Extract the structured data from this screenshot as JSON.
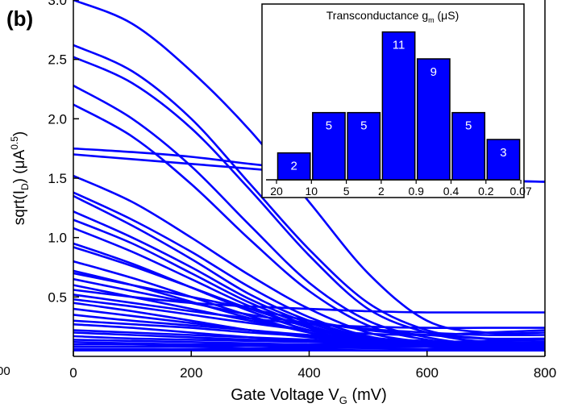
{
  "panel_label": "(b)",
  "clipped_tick_label": "00",
  "colors": {
    "curve": "#0000ff",
    "bar_fill": "#0000ff",
    "bar_stroke": "#000000",
    "bar_label": "#ffffff"
  },
  "chart_data": [
    {
      "type": "line",
      "xlabel": {
        "main": "Gate Voltage V",
        "sub": "G",
        "unit": " (mV)"
      },
      "ylabel": {
        "pre": "sqrt(I",
        "sub": "D",
        "mid": ") (μA",
        "sup": "0.5",
        "post": ")"
      },
      "xlim": [
        0,
        800
      ],
      "ylim": [
        0,
        3.0
      ],
      "xticks": [
        "0",
        "200",
        "400",
        "600",
        "800"
      ],
      "xtick_values": [
        0,
        200,
        400,
        600,
        800
      ],
      "yticks": [
        "0.5",
        "1.0",
        "1.5",
        "2.0",
        "2.5",
        "3.0"
      ],
      "ytick_values": [
        0.5,
        1.0,
        1.5,
        2.0,
        2.5,
        3.0
      ],
      "grid": false,
      "series": [
        {
          "x": [
            0,
            100,
            200,
            300,
            400,
            500,
            600,
            700,
            800
          ],
          "y": [
            3.0,
            2.8,
            2.4,
            1.9,
            1.3,
            0.7,
            0.3,
            0.2,
            0.2
          ]
        },
        {
          "x": [
            0,
            100,
            200,
            300,
            400,
            500,
            600,
            700,
            800
          ],
          "y": [
            2.62,
            2.4,
            2.0,
            1.45,
            0.9,
            0.45,
            0.22,
            0.15,
            0.14
          ]
        },
        {
          "x": [
            0,
            100,
            200,
            300,
            400,
            500,
            600,
            700,
            800
          ],
          "y": [
            2.52,
            2.3,
            1.92,
            1.4,
            0.85,
            0.4,
            0.2,
            0.12,
            0.1
          ]
        },
        {
          "x": [
            0,
            100,
            200,
            300,
            400,
            500,
            600,
            700,
            800
          ],
          "y": [
            2.28,
            2.0,
            1.6,
            1.1,
            0.62,
            0.3,
            0.16,
            0.1,
            0.1
          ]
        },
        {
          "x": [
            0,
            100,
            200,
            300,
            400,
            500,
            600,
            700,
            800
          ],
          "y": [
            2.12,
            1.85,
            1.45,
            0.98,
            0.55,
            0.26,
            0.14,
            0.1,
            0.1
          ]
        },
        {
          "x": [
            0,
            100,
            200,
            300,
            400,
            500,
            600,
            700,
            800
          ],
          "y": [
            1.75,
            1.72,
            1.68,
            1.62,
            1.57,
            1.53,
            1.5,
            1.48,
            1.47
          ]
        },
        {
          "x": [
            0,
            100,
            200,
            300,
            400,
            500,
            600,
            700,
            800
          ],
          "y": [
            1.7,
            1.66,
            1.62,
            1.58,
            1.54,
            1.51,
            1.49,
            1.48,
            1.47
          ]
        },
        {
          "x": [
            0,
            100,
            200,
            300,
            400,
            500,
            600,
            700,
            800
          ],
          "y": [
            1.52,
            1.3,
            1.0,
            0.68,
            0.4,
            0.2,
            0.12,
            0.1,
            0.1
          ]
        },
        {
          "x": [
            0,
            100,
            200,
            300,
            400,
            500,
            600,
            700,
            800
          ],
          "y": [
            1.38,
            1.15,
            0.88,
            0.58,
            0.33,
            0.17,
            0.1,
            0.09,
            0.09
          ]
        },
        {
          "x": [
            0,
            100,
            200,
            300,
            400,
            500,
            600,
            700,
            800
          ],
          "y": [
            1.35,
            1.1,
            0.82,
            0.52,
            0.3,
            0.16,
            0.1,
            0.08,
            0.08
          ]
        },
        {
          "x": [
            0,
            100,
            200,
            300,
            400,
            500,
            600,
            700,
            800
          ],
          "y": [
            1.22,
            1.0,
            0.75,
            0.48,
            0.28,
            0.15,
            0.1,
            0.08,
            0.08
          ]
        },
        {
          "x": [
            0,
            100,
            200,
            300,
            400,
            500,
            600,
            700,
            800
          ],
          "y": [
            1.15,
            0.95,
            0.7,
            0.45,
            0.26,
            0.14,
            0.09,
            0.08,
            0.08
          ]
        },
        {
          "x": [
            0,
            100,
            200,
            300,
            400,
            500,
            600,
            700,
            800
          ],
          "y": [
            1.08,
            0.88,
            0.65,
            0.42,
            0.24,
            0.13,
            0.09,
            0.08,
            0.08
          ]
        },
        {
          "x": [
            0,
            100,
            200,
            300,
            400,
            500,
            600,
            700,
            800
          ],
          "y": [
            0.95,
            0.78,
            0.58,
            0.38,
            0.22,
            0.12,
            0.09,
            0.08,
            0.08
          ]
        },
        {
          "x": [
            0,
            100,
            200,
            300,
            400,
            500,
            600,
            700,
            800
          ],
          "y": [
            0.92,
            0.76,
            0.58,
            0.4,
            0.25,
            0.15,
            0.1,
            0.08,
            0.08
          ]
        },
        {
          "x": [
            0,
            100,
            200,
            300,
            400,
            500,
            600,
            700,
            800
          ],
          "y": [
            0.8,
            0.66,
            0.5,
            0.34,
            0.2,
            0.12,
            0.08,
            0.07,
            0.07
          ]
        },
        {
          "x": [
            0,
            100,
            200,
            300,
            400,
            500,
            600,
            700,
            800
          ],
          "y": [
            0.72,
            0.6,
            0.46,
            0.32,
            0.2,
            0.12,
            0.08,
            0.07,
            0.07
          ]
        },
        {
          "x": [
            0,
            100,
            200,
            300,
            400,
            500,
            600,
            700,
            800
          ],
          "y": [
            0.7,
            0.6,
            0.5,
            0.4,
            0.3,
            0.22,
            0.18,
            0.15,
            0.15
          ]
        },
        {
          "x": [
            0,
            100,
            200,
            300,
            400,
            500,
            600,
            700,
            800
          ],
          "y": [
            0.65,
            0.55,
            0.45,
            0.35,
            0.28,
            0.23,
            0.2,
            0.18,
            0.18
          ]
        },
        {
          "x": [
            0,
            100,
            200,
            300,
            400,
            500,
            600,
            700,
            800
          ],
          "y": [
            0.6,
            0.5,
            0.4,
            0.3,
            0.22,
            0.16,
            0.12,
            0.11,
            0.11
          ]
        },
        {
          "x": [
            0,
            100,
            200,
            300,
            400,
            500,
            600,
            700,
            800
          ],
          "y": [
            0.56,
            0.5,
            0.45,
            0.42,
            0.4,
            0.38,
            0.37,
            0.37,
            0.37
          ]
        },
        {
          "x": [
            0,
            100,
            200,
            300,
            400,
            500,
            600,
            700,
            800
          ],
          "y": [
            0.52,
            0.45,
            0.38,
            0.32,
            0.27,
            0.25,
            0.24,
            0.24,
            0.24
          ]
        },
        {
          "x": [
            0,
            100,
            200,
            300,
            400,
            500,
            600,
            700,
            800
          ],
          "y": [
            0.48,
            0.42,
            0.35,
            0.28,
            0.22,
            0.19,
            0.18,
            0.2,
            0.22
          ]
        },
        {
          "x": [
            0,
            100,
            200,
            300,
            400,
            500,
            600,
            700,
            800
          ],
          "y": [
            0.45,
            0.38,
            0.3,
            0.22,
            0.16,
            0.12,
            0.11,
            0.1,
            0.1
          ]
        },
        {
          "x": [
            0,
            100,
            200,
            300,
            400,
            500,
            600,
            700,
            800
          ],
          "y": [
            0.4,
            0.34,
            0.28,
            0.22,
            0.17,
            0.13,
            0.11,
            0.1,
            0.1
          ]
        },
        {
          "x": [
            0,
            100,
            200,
            300,
            400,
            500,
            600,
            700,
            800
          ],
          "y": [
            0.35,
            0.3,
            0.26,
            0.22,
            0.18,
            0.15,
            0.13,
            0.12,
            0.12
          ]
        },
        {
          "x": [
            0,
            100,
            200,
            300,
            400,
            500,
            600,
            700,
            800
          ],
          "y": [
            0.3,
            0.27,
            0.24,
            0.2,
            0.17,
            0.14,
            0.12,
            0.11,
            0.11
          ]
        },
        {
          "x": [
            0,
            100,
            200,
            300,
            400,
            500,
            600,
            700,
            800
          ],
          "y": [
            0.27,
            0.24,
            0.2,
            0.16,
            0.13,
            0.11,
            0.1,
            0.1,
            0.1
          ]
        },
        {
          "x": [
            0,
            100,
            200,
            300,
            400,
            500,
            600,
            700,
            800
          ],
          "y": [
            0.22,
            0.2,
            0.18,
            0.16,
            0.14,
            0.12,
            0.11,
            0.1,
            0.1
          ]
        },
        {
          "x": [
            0,
            100,
            200,
            300,
            400,
            500,
            600,
            700,
            800
          ],
          "y": [
            0.2,
            0.18,
            0.16,
            0.14,
            0.13,
            0.12,
            0.12,
            0.13,
            0.14
          ]
        },
        {
          "x": [
            0,
            100,
            200,
            300,
            400,
            500,
            600,
            700,
            800
          ],
          "y": [
            0.17,
            0.15,
            0.14,
            0.13,
            0.12,
            0.11,
            0.1,
            0.1,
            0.1
          ]
        },
        {
          "x": [
            0,
            100,
            200,
            300,
            400,
            500,
            600,
            700,
            800
          ],
          "y": [
            0.14,
            0.13,
            0.12,
            0.11,
            0.1,
            0.1,
            0.09,
            0.09,
            0.09
          ]
        },
        {
          "x": [
            0,
            100,
            200,
            300,
            400,
            500,
            600,
            700,
            800
          ],
          "y": [
            0.12,
            0.11,
            0.1,
            0.1,
            0.09,
            0.09,
            0.08,
            0.08,
            0.08
          ]
        },
        {
          "x": [
            0,
            100,
            200,
            300,
            400,
            500,
            600,
            700,
            800
          ],
          "y": [
            0.1,
            0.1,
            0.09,
            0.09,
            0.08,
            0.08,
            0.08,
            0.07,
            0.07
          ]
        },
        {
          "x": [
            0,
            100,
            200,
            300,
            400,
            500,
            600,
            700,
            800
          ],
          "y": [
            0.08,
            0.08,
            0.08,
            0.07,
            0.07,
            0.07,
            0.06,
            0.06,
            0.06
          ]
        },
        {
          "x": [
            0,
            100,
            200,
            300,
            400,
            500,
            600,
            700,
            800
          ],
          "y": [
            0.06,
            0.06,
            0.06,
            0.06,
            0.06,
            0.05,
            0.05,
            0.05,
            0.05
          ]
        },
        {
          "x": [
            0,
            100,
            200,
            300,
            400,
            500,
            600,
            700,
            800
          ],
          "y": [
            0.05,
            0.05,
            0.05,
            0.05,
            0.05,
            0.05,
            0.05,
            0.05,
            0.05
          ]
        }
      ]
    },
    {
      "type": "bar",
      "title": {
        "pre": "Transconductance g",
        "sub": "m",
        "post": " (μS)"
      },
      "categories": [
        "20–10",
        "10–5",
        "5–2",
        "2–0.9",
        "0.9–0.4",
        "0.4–0.2",
        "0.2–0.07"
      ],
      "values": [
        2,
        5,
        5,
        11,
        9,
        5,
        3
      ],
      "bin_edge_labels": [
        "20",
        "10",
        "5",
        "2",
        "0.9",
        "0.4",
        "0.2",
        "0.07"
      ],
      "ylim": [
        0,
        12
      ],
      "grid": false
    }
  ]
}
